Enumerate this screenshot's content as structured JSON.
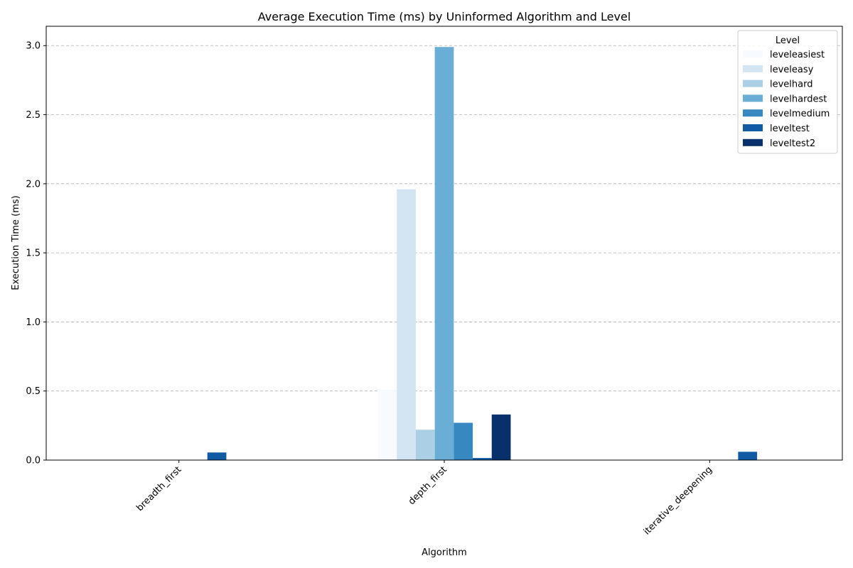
{
  "chart_data": {
    "type": "bar",
    "title": "Average Execution Time (ms) by Uninformed Algorithm and Level",
    "xlabel": "Algorithm",
    "ylabel": "Execution Time (ms)",
    "categories": [
      "breadth_first",
      "depth_first",
      "iterative_deepening"
    ],
    "ylim": [
      0,
      3.14
    ],
    "yticks": [
      0.0,
      0.5,
      1.0,
      1.5,
      2.0,
      2.5,
      3.0
    ],
    "ytick_labels": [
      "0.0",
      "0.5",
      "1.0",
      "1.5",
      "2.0",
      "2.5",
      "3.0"
    ],
    "grid": "y-dashed",
    "legend": {
      "title": "Level",
      "placement": "top-right"
    },
    "series": [
      {
        "name": "leveleasiest",
        "color": "#f7fbff",
        "values": [
          0.0,
          0.51,
          0.0
        ]
      },
      {
        "name": "leveleasy",
        "color": "#d3e4f3",
        "values": [
          0.0,
          1.96,
          0.0
        ]
      },
      {
        "name": "levelhard",
        "color": "#abd0e6",
        "values": [
          0.0,
          0.22,
          0.0
        ]
      },
      {
        "name": "levelhardest",
        "color": "#6aaed6",
        "values": [
          0.0,
          2.99,
          0.0
        ]
      },
      {
        "name": "levelmedium",
        "color": "#3787c0",
        "values": [
          0.0,
          0.27,
          0.0
        ]
      },
      {
        "name": "leveltest",
        "color": "#105ba4",
        "values": [
          0.055,
          0.015,
          0.06
        ]
      },
      {
        "name": "leveltest2",
        "color": "#08306b",
        "values": [
          0.0,
          0.33,
          0.0
        ]
      }
    ]
  }
}
